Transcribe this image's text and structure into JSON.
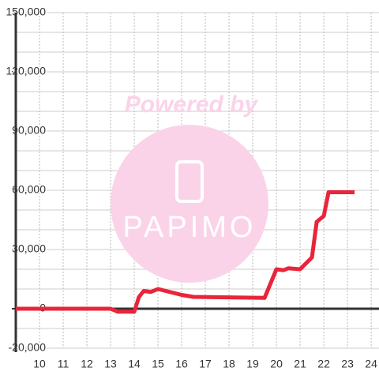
{
  "chart_data": {
    "type": "line",
    "watermark": [
      "Powered by",
      "PAPIMO"
    ],
    "x": [
      9,
      13,
      13.3,
      14,
      14.2,
      14.4,
      14.7,
      15,
      15.5,
      16,
      16.5,
      19.5,
      20,
      20.3,
      20.5,
      21,
      21.5,
      21.7,
      22,
      22.2,
      23.3
    ],
    "series": [
      {
        "color": "#e8253a",
        "values": [
          0,
          0,
          -1500,
          -1500,
          6000,
          9000,
          8500,
          10000,
          8500,
          7000,
          6000,
          5500,
          20000,
          19500,
          20500,
          20000,
          26000,
          44000,
          47000,
          59000,
          59000
        ]
      }
    ],
    "xlim": [
      9,
      24.33
    ],
    "xticks": [
      10,
      11,
      12,
      13,
      14,
      15,
      16,
      17,
      18,
      19,
      20,
      21,
      22,
      23,
      24
    ],
    "ylim": [
      -20000,
      150000
    ],
    "yticks": [
      {
        "value": -20000,
        "label": "-20,000"
      },
      0,
      {
        "value": 30000,
        "label": "30,000"
      },
      {
        "value": 60000,
        "label": "60,000"
      },
      {
        "value": 90000,
        "label": "90,000"
      },
      {
        "value": 120000,
        "label": "120,000"
      },
      {
        "value": 150000,
        "label": "150,000"
      }
    ],
    "y_gridlines": [
      -10000,
      10000,
      20000,
      40000,
      50000,
      70000,
      80000,
      100000,
      110000,
      130000,
      140000
    ],
    "grid": true
  }
}
